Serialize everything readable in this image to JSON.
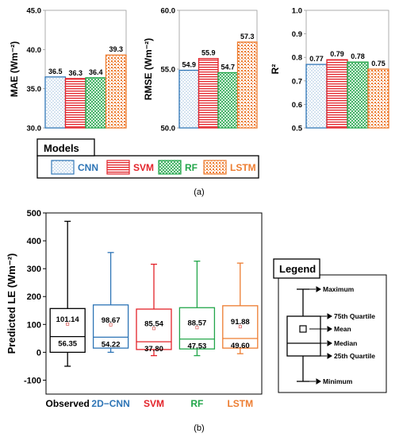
{
  "colors": {
    "CNN": "#2e75b6",
    "SVM": "#e3232a",
    "RF": "#22a64a",
    "LSTM": "#ed7d31",
    "Observed": "#000000"
  },
  "legend_a": {
    "title": "Models",
    "items": [
      {
        "label": "CNN",
        "key": "CNN"
      },
      {
        "label": "SVM",
        "key": "SVM"
      },
      {
        "label": "RF",
        "key": "RF"
      },
      {
        "label": "LSTM",
        "key": "LSTM"
      }
    ]
  },
  "caption_a": "(a)",
  "caption_b": "(b)",
  "chart_data": [
    {
      "type": "bar",
      "ylabel": "MAE (Wm⁻²)",
      "ylim": [
        30,
        45
      ],
      "yticks": [
        "30.0",
        "35.0",
        "40.0",
        "45.0"
      ],
      "categories": [
        "CNN",
        "SVM",
        "RF",
        "LSTM"
      ],
      "values": [
        36.5,
        36.3,
        36.4,
        39.3
      ],
      "labels": [
        "36.5",
        "36.3",
        "36.4",
        "39.3"
      ],
      "grid": false
    },
    {
      "type": "bar",
      "ylabel": "RMSE (Wm⁻²)",
      "ylim": [
        50,
        60
      ],
      "yticks": [
        "50.0",
        "55.0",
        "60.0"
      ],
      "categories": [
        "CNN",
        "SVM",
        "RF",
        "LSTM"
      ],
      "values": [
        54.9,
        55.9,
        54.7,
        57.3
      ],
      "labels": [
        "54.9",
        "55.9",
        "54.7",
        "57.3"
      ],
      "grid": false
    },
    {
      "type": "bar",
      "ylabel": "R²",
      "ylim": [
        0.5,
        1.0
      ],
      "yticks": [
        "0.5",
        "0.6",
        "0.7",
        "0.8",
        "0.9",
        "1.0"
      ],
      "categories": [
        "CNN",
        "SVM",
        "RF",
        "LSTM"
      ],
      "values": [
        0.77,
        0.79,
        0.78,
        0.75
      ],
      "labels": [
        "0.77",
        "0.79",
        "0.78",
        "0.75"
      ],
      "grid": false
    },
    {
      "type": "box",
      "ylabel": "Predicted LE (Wm⁻²)",
      "ylim": [
        -150,
        500
      ],
      "yticks": [
        "-100",
        "0",
        "100",
        "200",
        "300",
        "400",
        "500"
      ],
      "categories": [
        "Observed",
        "2D−CNN",
        "SVM",
        "RF",
        "LSTM"
      ],
      "keys": [
        "Observed",
        "CNN",
        "SVM",
        "RF",
        "LSTM"
      ],
      "boxes": [
        {
          "min": -50,
          "q1": 0,
          "median": 56.35,
          "q3": 157,
          "max": 470,
          "mean": 101.14,
          "mean_label": "101.14",
          "median_label": "56.35"
        },
        {
          "min": 0,
          "q1": 15,
          "median": 54.22,
          "q3": 170,
          "max": 358,
          "mean": 98.67,
          "mean_label": "98.67",
          "median_label": "54.22"
        },
        {
          "min": -12,
          "q1": 10,
          "median": 37.8,
          "q3": 155,
          "max": 316,
          "mean": 85.54,
          "mean_label": "85.54",
          "median_label": "37.80"
        },
        {
          "min": -12,
          "q1": 12,
          "median": 47.53,
          "q3": 160,
          "max": 327,
          "mean": 88.57,
          "mean_label": "88.57",
          "median_label": "47.53"
        },
        {
          "min": -5,
          "q1": 15,
          "median": 49.6,
          "q3": 167,
          "max": 320,
          "mean": 91.88,
          "mean_label": "91.88",
          "median_label": "49.60"
        }
      ],
      "legend": {
        "title": "Legend",
        "maximum": "Maximum",
        "q75": "75th Quartile",
        "mean": "Mean",
        "median": "Median",
        "q25": "25th Quartile",
        "minimum": "Minimum"
      }
    }
  ]
}
